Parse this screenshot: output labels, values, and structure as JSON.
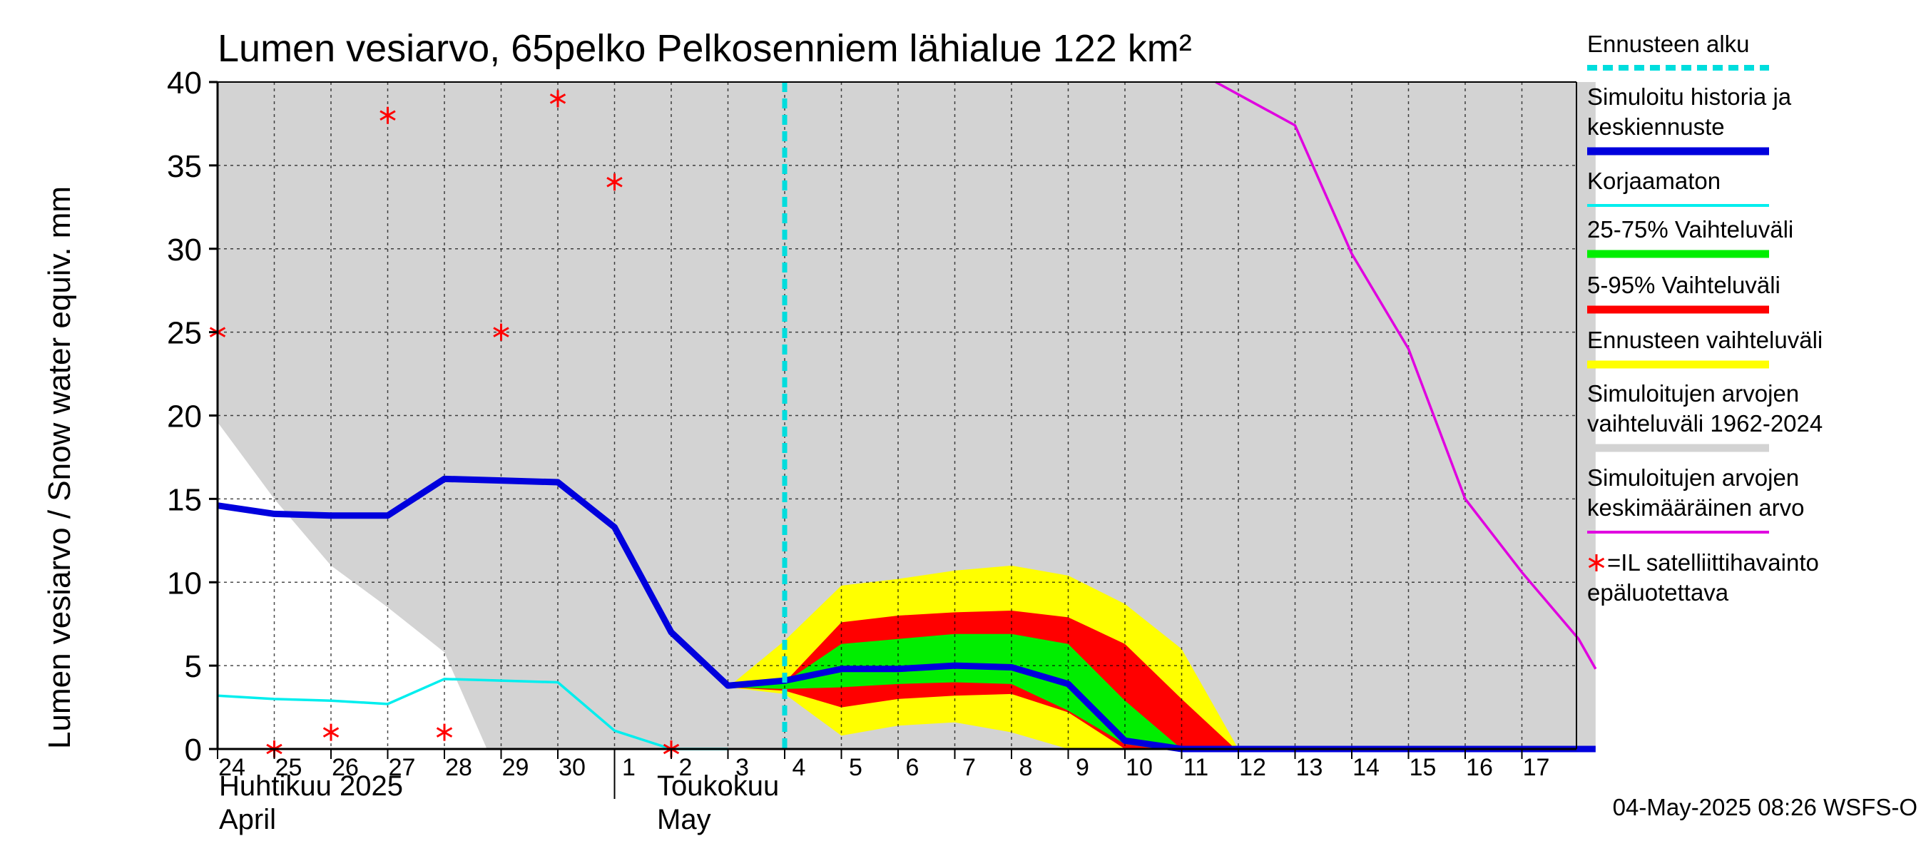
{
  "chart_data": {
    "type": "line",
    "title": "Lumen vesiarvo, 65pelko Pelkosenniem lähialue 122 km²",
    "ylabel": "Lumen vesiarvo / Snow water equiv.    mm",
    "ylim": [
      0,
      40
    ],
    "yticks": [
      0,
      5,
      10,
      15,
      20,
      25,
      30,
      35,
      40
    ],
    "xlim": [
      0,
      24.3
    ],
    "x_tick_labels": [
      "24",
      "25",
      "26",
      "27",
      "28",
      "29",
      "30",
      "1",
      "2",
      "3",
      "4",
      "5",
      "6",
      "7",
      "8",
      "9",
      "10",
      "11",
      "12",
      "13",
      "14",
      "15",
      "16",
      "17"
    ],
    "month_labels": {
      "april_fi": "Huhtikuu  2025",
      "april_en": "April",
      "may_fi": "Toukokuu",
      "may_en": "May"
    },
    "forecast_start_x": 10,
    "hist_range": {
      "upper": [
        [
          0,
          40
        ],
        [
          24.3,
          40
        ]
      ],
      "lower": [
        [
          0,
          19.6
        ],
        [
          1,
          15.0
        ],
        [
          2,
          11.0
        ],
        [
          3,
          8.5
        ],
        [
          4,
          5.8
        ],
        [
          4.75,
          0
        ],
        [
          24.3,
          0
        ]
      ]
    },
    "forecast_range": {
      "upper": [
        [
          9,
          3.7
        ],
        [
          10,
          6.5
        ],
        [
          11,
          9.8
        ],
        [
          12,
          10.2
        ],
        [
          13,
          10.7
        ],
        [
          14,
          11.0
        ],
        [
          15,
          10.4
        ],
        [
          16,
          8.7
        ],
        [
          17,
          6.0
        ],
        [
          18,
          0
        ],
        [
          24.3,
          0
        ]
      ],
      "lower": [
        [
          9,
          3.7
        ],
        [
          10,
          3.3
        ],
        [
          11,
          0.8
        ],
        [
          12,
          1.4
        ],
        [
          13,
          1.6
        ],
        [
          14,
          1.0
        ],
        [
          15,
          0
        ],
        [
          24.3,
          0
        ]
      ]
    },
    "band_5_95": {
      "upper": [
        [
          9,
          3.7
        ],
        [
          10,
          4.0
        ],
        [
          11,
          7.6
        ],
        [
          12,
          8.0
        ],
        [
          13,
          8.2
        ],
        [
          14,
          8.3
        ],
        [
          15,
          7.9
        ],
        [
          16,
          6.3
        ],
        [
          17,
          3.0
        ],
        [
          17.95,
          0
        ],
        [
          24.3,
          0
        ]
      ],
      "lower": [
        [
          9,
          3.7
        ],
        [
          10,
          3.5
        ],
        [
          11,
          2.5
        ],
        [
          12,
          3.0
        ],
        [
          13,
          3.2
        ],
        [
          14,
          3.3
        ],
        [
          15,
          2.2
        ],
        [
          16,
          0
        ],
        [
          24.3,
          0
        ]
      ]
    },
    "band_25_75": {
      "upper": [
        [
          9,
          3.7
        ],
        [
          10,
          4.0
        ],
        [
          11,
          6.3
        ],
        [
          12,
          6.6
        ],
        [
          13,
          6.9
        ],
        [
          14,
          6.9
        ],
        [
          15,
          6.3
        ],
        [
          16,
          2.9
        ],
        [
          17,
          0
        ],
        [
          24.3,
          0
        ]
      ],
      "lower": [
        [
          9,
          3.7
        ],
        [
          10,
          3.6
        ],
        [
          11,
          3.7
        ],
        [
          12,
          3.9
        ],
        [
          13,
          4.0
        ],
        [
          14,
          3.9
        ],
        [
          15,
          2.3
        ],
        [
          16,
          0.3
        ],
        [
          16.6,
          0
        ],
        [
          24.3,
          0
        ]
      ]
    },
    "series": [
      {
        "name": "Simuloitu historia ja keskiennuste",
        "color": "#0000dd",
        "points": [
          [
            0,
            14.6
          ],
          [
            1,
            14.1
          ],
          [
            2,
            14.0
          ],
          [
            3,
            14.0
          ],
          [
            4,
            16.2
          ],
          [
            5,
            16.1
          ],
          [
            6,
            16.0
          ],
          [
            7,
            13.3
          ],
          [
            8,
            7.0
          ],
          [
            9,
            3.8
          ],
          [
            10,
            4.1
          ],
          [
            11,
            4.8
          ],
          [
            12,
            4.8
          ],
          [
            13,
            5.0
          ],
          [
            14,
            4.9
          ],
          [
            15,
            3.9
          ],
          [
            16,
            0.5
          ],
          [
            17,
            0
          ],
          [
            24.3,
            0
          ]
        ]
      },
      {
        "name": "Korjaamaton",
        "color": "#00eeee",
        "points": [
          [
            0,
            3.2
          ],
          [
            1,
            3.0
          ],
          [
            2,
            2.9
          ],
          [
            3,
            2.7
          ],
          [
            4,
            4.2
          ],
          [
            5,
            4.1
          ],
          [
            6,
            4.0
          ],
          [
            7,
            1.1
          ],
          [
            8,
            0
          ],
          [
            9,
            0
          ]
        ]
      },
      {
        "name": "Simuloitujen arvojen keskimääräinen arvo",
        "color": "#e000e0",
        "points": [
          [
            17.6,
            40.0
          ],
          [
            19,
            37.4
          ],
          [
            20,
            29.7
          ],
          [
            21,
            24.0
          ],
          [
            22,
            15.0
          ],
          [
            23,
            10.6
          ],
          [
            24,
            6.6
          ],
          [
            24.3,
            4.8
          ]
        ]
      }
    ],
    "observations": [
      [
        0,
        25.0
      ],
      [
        1,
        0
      ],
      [
        2,
        1.0
      ],
      [
        3,
        38.0
      ],
      [
        4,
        1.0
      ],
      [
        5,
        25.0
      ],
      [
        6,
        39.0
      ],
      [
        7,
        34.0
      ],
      [
        8,
        0
      ]
    ],
    "legend": [
      {
        "label": "Ennusteen alku",
        "color": "#00dddd",
        "style": "dashed"
      },
      {
        "label": "Simuloitu historia ja",
        "label2": "keskiennuste",
        "color": "#0000dd",
        "style": "thick"
      },
      {
        "label": "Korjaamaton",
        "color": "#00eeee",
        "style": "thin"
      },
      {
        "label": "25-75% Vaihteluväli",
        "color": "#00ee00",
        "style": "thick"
      },
      {
        "label": "5-95% Vaihteluväli",
        "color": "#ff0000",
        "style": "thick"
      },
      {
        "label": "Ennusteen vaihteluväli",
        "color": "#ffff00",
        "style": "thick"
      },
      {
        "label": "Simuloitujen arvojen",
        "label2": "vaihteluväli 1962-2024",
        "color": "#d3d3d3",
        "style": "thick"
      },
      {
        "label": "Simuloitujen arvojen",
        "label2": "keskimääräinen arvo",
        "color": "#e000e0",
        "style": "thin"
      },
      {
        "label": "=IL satelliittihavainto",
        "label2": "epäluotettava",
        "color": "#ff0000",
        "style": "star"
      }
    ],
    "footer": "04-May-2025 08:26 WSFS-O"
  }
}
